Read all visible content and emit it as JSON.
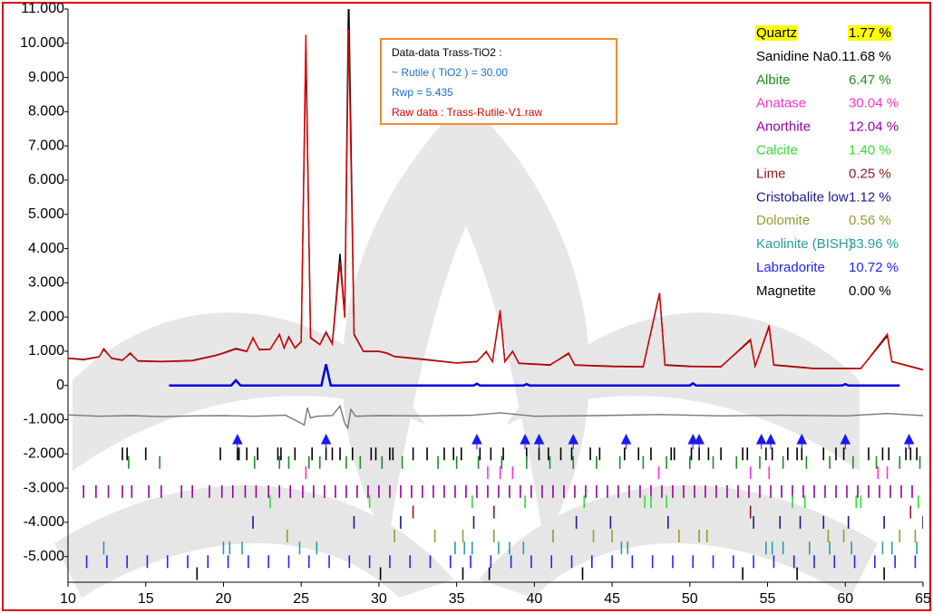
{
  "chart_data": {
    "type": "line",
    "xlim": [
      10,
      65
    ],
    "xticks": [
      10,
      15,
      20,
      25,
      30,
      35,
      40,
      45,
      50,
      55,
      60,
      65
    ],
    "ylim": [
      -5750,
      11000
    ],
    "yticks": [
      {
        "value": 11000,
        "label": "11.000"
      },
      {
        "value": 10000,
        "label": "10.000"
      },
      {
        "value": 9000,
        "label": "9.000"
      },
      {
        "value": 8000,
        "label": "8.000"
      },
      {
        "value": 7000,
        "label": "7.000"
      },
      {
        "value": 6000,
        "label": "6.000"
      },
      {
        "value": 5000,
        "label": "5.000"
      },
      {
        "value": 4000,
        "label": "4.000"
      },
      {
        "value": 3000,
        "label": "3.000"
      },
      {
        "value": 2000,
        "label": "2.000"
      },
      {
        "value": 1000,
        "label": "1.000"
      },
      0,
      {
        "value": -1000,
        "label": "-1.000"
      },
      {
        "value": -2000,
        "label": "-2.000"
      },
      {
        "value": -3000,
        "label": "-3.000"
      },
      {
        "value": -4000,
        "label": "-4.000"
      },
      {
        "value": -5000,
        "label": "-5.000"
      }
    ],
    "info": [
      "Data-data Trass-TiO2 :",
      "~ Rutile ( TiO2 ) = 30.00",
      "Rwp = 5.435",
      "Raw data : Trass-Rutile-V1.raw"
    ],
    "series": [
      {
        "color": "#000000",
        "x": [
          10,
          11,
          12,
          12.3,
          12.8,
          13.5,
          14,
          14.5,
          16,
          18,
          19.5,
          20,
          20.8,
          21.5,
          21.9,
          22.3,
          23,
          23.6,
          23.9,
          24.2,
          24.6,
          25,
          25.3,
          25.6,
          26.2,
          26.6,
          27,
          27.5,
          27.8,
          28.05,
          28.4,
          29,
          30,
          30.5,
          31,
          33,
          35,
          36.3,
          36.9,
          37.3,
          37.8,
          38.1,
          38.6,
          39,
          41,
          42.2,
          42.6,
          45,
          47,
          48.05,
          48.4,
          50,
          52,
          53.9,
          54.2,
          55.1,
          55.4,
          58,
          61,
          62.7,
          63,
          65
        ],
        "values": [
          800,
          760,
          840,
          1050,
          800,
          740,
          930,
          720,
          700,
          730,
          880,
          950,
          1080,
          1000,
          1380,
          1050,
          1060,
          1480,
          1100,
          1420,
          1100,
          1280,
          9900,
          1400,
          1200,
          1560,
          1220,
          3850,
          2000,
          11600,
          1500,
          1000,
          1000,
          950,
          850,
          760,
          660,
          700,
          980,
          700,
          2150,
          700,
          1000,
          650,
          600,
          930,
          600,
          560,
          550,
          2700,
          600,
          560,
          550,
          1320,
          560,
          1720,
          600,
          500,
          500,
          1450,
          700,
          460
        ]
      },
      {
        "color": "#e00000",
        "x": [
          10,
          11,
          12,
          12.3,
          12.8,
          13.5,
          14,
          14.5,
          16,
          18,
          19.5,
          20,
          20.8,
          21.5,
          21.9,
          22.3,
          23,
          23.6,
          23.9,
          24.2,
          24.6,
          25,
          25.3,
          25.6,
          26.2,
          26.6,
          27,
          27.5,
          27.8,
          28.05,
          28.4,
          29,
          30,
          30.5,
          31,
          33,
          35,
          36.3,
          36.9,
          37.3,
          37.8,
          38.1,
          38.6,
          39,
          41,
          42.2,
          42.6,
          45,
          47,
          48.05,
          48.4,
          50,
          52,
          53.9,
          54.2,
          55.1,
          55.4,
          58,
          61,
          62.7,
          63,
          65
        ],
        "values": [
          790,
          750,
          830,
          1080,
          790,
          730,
          950,
          710,
          690,
          720,
          870,
          940,
          1060,
          990,
          1400,
          1040,
          1050,
          1500,
          1090,
          1400,
          1090,
          1270,
          10250,
          1380,
          1190,
          1540,
          1210,
          3600,
          1980,
          10400,
          1480,
          990,
          990,
          940,
          840,
          750,
          650,
          690,
          1000,
          690,
          2200,
          690,
          990,
          640,
          590,
          950,
          590,
          550,
          540,
          2680,
          590,
          550,
          540,
          1350,
          550,
          1760,
          590,
          490,
          490,
          1500,
          690,
          450
        ]
      },
      {
        "color": "#0000dd",
        "x": [
          16.5,
          20.5,
          20.8,
          21.1,
          26.3,
          26.6,
          26.9,
          36.1,
          36.3,
          36.5,
          39.3,
          39.5,
          39.7,
          50,
          50.2,
          50.4,
          59.8,
          60,
          60.2,
          63.5
        ],
        "values": [
          0,
          0,
          150,
          0,
          0,
          620,
          0,
          0,
          50,
          0,
          0,
          40,
          0,
          0,
          60,
          0,
          0,
          40,
          0,
          0
        ]
      },
      {
        "color": "#777777",
        "x": [
          10,
          12,
          14,
          16,
          18,
          20,
          22,
          24,
          25.2,
          25.4,
          25.6,
          26,
          27,
          27.5,
          27.8,
          28,
          28.2,
          28.5,
          30,
          33,
          36,
          37.8,
          40,
          44,
          48,
          52,
          56,
          60,
          62.7,
          65
        ],
        "values": [
          -860,
          -900,
          -880,
          -910,
          -890,
          -880,
          -900,
          -870,
          -1150,
          -650,
          -950,
          -900,
          -880,
          -600,
          -1100,
          -1250,
          -700,
          -900,
          -880,
          -890,
          -870,
          -800,
          -900,
          -880,
          -850,
          -890,
          -870,
          -890,
          -820,
          -880
        ]
      }
    ],
    "markers": {
      "color": "#1a1aee",
      "level": -1600,
      "positions": [
        20.9,
        26.6,
        36.3,
        39.4,
        40.3,
        42.5,
        45.9,
        50.2,
        50.6,
        54.6,
        55.2,
        57.2,
        60.0,
        64.1
      ]
    },
    "phases": [
      {
        "name": "Quartz",
        "color": "#000000",
        "value": 1.77,
        "value_label": "1.77 %",
        "level": -2000,
        "positions": [
          13.8,
          15.0,
          19.8,
          20.9,
          21.5,
          22.2,
          23.7,
          24.6,
          26.6,
          27.5,
          28.3,
          29.8,
          30.7,
          33.1,
          34.2,
          35.3,
          36.5,
          38.0,
          39.5,
          40.3,
          41.7,
          42.4,
          44.2,
          45.8,
          47.5,
          49.0,
          50.1,
          50.6,
          52.0,
          53.4,
          54.9,
          55.3,
          56.3,
          57.2,
          58.6,
          59.9,
          61.5,
          62.4,
          63.9,
          64.6
        ]
      },
      {
        "name": "Sanidine Na0.1",
        "color": "#000000",
        "value": 1.68,
        "value_label": "1.68 %",
        "level": -2000,
        "positions": [
          13.5,
          21.0,
          23.5,
          25.7,
          27.0,
          29.5,
          30.9,
          32.2,
          34.8,
          37.2,
          40.9,
          43.6,
          46.7,
          48.8,
          51.2,
          53.7,
          56.9,
          59.4,
          62.8,
          64.2
        ]
      },
      {
        "name": "Albite",
        "color": "#228b22",
        "value": 6.47,
        "value_label": "6.47 %",
        "level": -2250,
        "positions": [
          13.9,
          15.9,
          22.0,
          23.6,
          24.2,
          25.5,
          26.2,
          27.9,
          28.8,
          30.2,
          31.5,
          33.8,
          35.0,
          36.4,
          37.9,
          39.5,
          41.0,
          42.5,
          44.0,
          45.5,
          47.0,
          48.5,
          50.0,
          51.5,
          53.0,
          54.5,
          56.0,
          57.5,
          59.0,
          60.5,
          62.0,
          63.5,
          64.8
        ]
      },
      {
        "name": "Anatase",
        "color": "#ff33cc",
        "value": 30.04,
        "value_label": "30.04 %",
        "level": -2550,
        "positions": [
          25.3,
          37.0,
          37.8,
          38.6,
          48.0,
          53.9,
          55.1,
          62.1,
          62.7
        ]
      },
      {
        "name": "Anorthite",
        "color": "#990099",
        "value": 12.04,
        "value_label": "12.04 %",
        "level": -3100,
        "positions": [
          11,
          11.8,
          12.6,
          13.5,
          14.1,
          15.2,
          16.0,
          17.3,
          18.0,
          19.1,
          19.9,
          20.6,
          21.4,
          22.1,
          22.9,
          23.6,
          24.3,
          25.1,
          25.8,
          26.5,
          27.2,
          27.9,
          28.6,
          29.3,
          30.0,
          30.7,
          31.4,
          32.1,
          32.8,
          33.5,
          34.2,
          34.9,
          35.6,
          36.3,
          37.0,
          37.7,
          38.4,
          39.1,
          39.8,
          40.5,
          41.2,
          41.9,
          42.6,
          43.3,
          44.0,
          44.7,
          45.4,
          46.1,
          46.8,
          47.5,
          48.2,
          48.9,
          49.6,
          50.3,
          51.0,
          51.7,
          52.4,
          53.1,
          53.8,
          54.5,
          55.2,
          55.9,
          56.6,
          57.3,
          58.0,
          58.7,
          59.4,
          60.1,
          60.8,
          61.5,
          62.2,
          62.9,
          63.6,
          64.3
        ]
      },
      {
        "name": "Calcite",
        "color": "#33dd33",
        "value": 1.4,
        "value_label": "1.40 %",
        "level": -3400,
        "positions": [
          23.0,
          29.4,
          36.0,
          39.4,
          43.2,
          47.1,
          47.5,
          48.5,
          56.6,
          57.4,
          60.7,
          61.0,
          64.7
        ]
      },
      {
        "name": "Lime",
        "color": "#8b1a1a",
        "value": 0.25,
        "value_label": "0.25 %",
        "level": -3700,
        "positions": [
          32.2,
          37.4,
          53.9,
          64.2
        ]
      },
      {
        "name": "Cristobalite low",
        "color": "#1a1a8c",
        "value": 1.12,
        "value_label": "1.12 %",
        "level": -4000,
        "positions": [
          21.9,
          28.4,
          31.4,
          36.1,
          42.7,
          44.9,
          48.6,
          54.1,
          55.8,
          57.1,
          58.6,
          60.2,
          62.5,
          65.0
        ]
      },
      {
        "name": "Dolomite",
        "color": "#999933",
        "value": 0.56,
        "value_label": "0.56 %",
        "level": -4400,
        "positions": [
          24.1,
          31.0,
          33.6,
          35.4,
          37.4,
          41.2,
          43.8,
          45.0,
          49.3,
          50.6,
          51.1,
          58.9,
          59.9,
          63.5,
          64.5
        ]
      },
      {
        "name": "Kaolinite (BISH)",
        "color": "#2a9d9d",
        "value": 33.96,
        "value_label": "33.96 %",
        "level": -4750,
        "positions": [
          12.3,
          20.0,
          20.4,
          21.2,
          24.9,
          26.0,
          34.9,
          35.5,
          36.0,
          37.7,
          38.4,
          39.3,
          45.6,
          46.0,
          54.9,
          55.3,
          56.0,
          57.7,
          59.0,
          60.4,
          62.4,
          63.0,
          64.6
        ]
      },
      {
        "name": "Labradorite",
        "color": "#2222ff",
        "value": 10.72,
        "value_label": "10.72 %",
        "level": -5150,
        "positions": [
          11.2,
          12.5,
          13.8,
          15.1,
          16.4,
          17.7,
          19.0,
          20.3,
          21.6,
          22.9,
          24.2,
          25.5,
          26.8,
          28.1,
          29.4,
          30.7,
          32.0,
          33.3,
          34.6,
          35.9,
          37.2,
          38.5,
          39.8,
          41.1,
          42.4,
          43.7,
          45.0,
          46.3,
          47.6,
          48.9,
          50.2,
          51.5,
          52.8,
          54.1,
          55.4,
          56.7,
          58.0,
          59.3,
          60.6,
          61.9,
          63.2,
          64.5
        ]
      },
      {
        "name": "Magnetite",
        "color": "#000000",
        "value": 0.0,
        "value_label": "0.00 %",
        "level": -5500,
        "positions": [
          18.3,
          30.1,
          35.4,
          37.1,
          43.1,
          53.4,
          56.9,
          62.5
        ]
      }
    ]
  }
}
